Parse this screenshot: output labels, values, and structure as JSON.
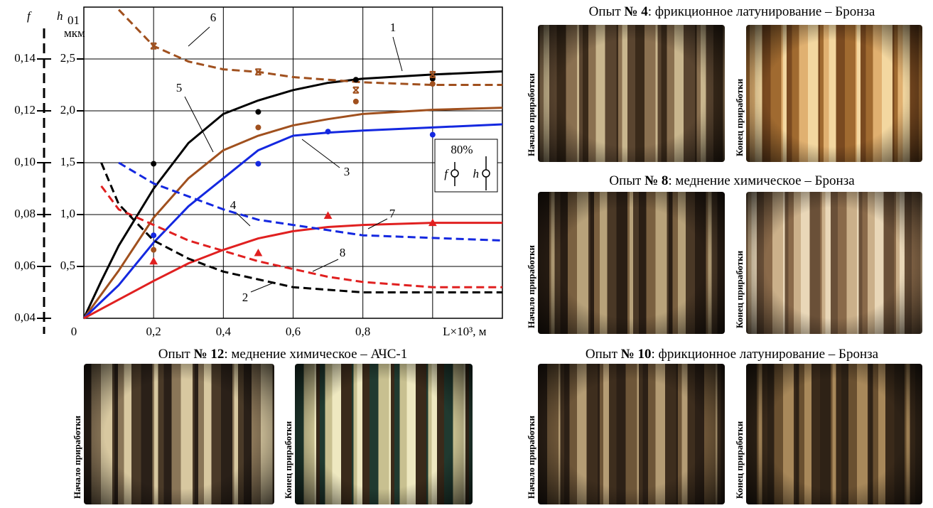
{
  "chart_data": {
    "type": "line",
    "axis_titles": {
      "f": "f",
      "h": "h",
      "h_sub": "01",
      "h_unit": "мкм"
    },
    "xlim": [
      0,
      1.2
    ],
    "ylim": [
      0,
      3.0
    ],
    "y2lim": [
      0.04,
      0.16
    ],
    "grid": true,
    "xticks": [
      0,
      {
        "value": 0.2,
        "label": "0,2"
      },
      {
        "value": 0.4,
        "label": "0,4"
      },
      {
        "value": 0.6,
        "label": "0,6"
      },
      {
        "value": 0.8,
        "label": "0,8"
      },
      {
        "value": 1.0,
        "label": "L×10³, м"
      }
    ],
    "yticks": [
      {
        "value": 0.5,
        "label": "0,5"
      },
      {
        "value": 1.0,
        "label": "1,0"
      },
      {
        "value": 1.5,
        "label": "1,5"
      },
      {
        "value": 2.0,
        "label": "2,0"
      },
      {
        "value": 2.5,
        "label": "2,5"
      }
    ],
    "y2ticks": [
      {
        "value": 0.04,
        "label": "0,04"
      },
      {
        "value": 0.06,
        "label": "0,06"
      },
      {
        "value": 0.08,
        "label": "0,08"
      },
      {
        "value": 0.1,
        "label": "0,10"
      },
      {
        "value": 0.12,
        "label": "0,12"
      },
      {
        "value": 0.14,
        "label": "0,14"
      }
    ],
    "x": [
      0,
      0.05,
      0.1,
      0.2,
      0.3,
      0.4,
      0.5,
      0.6,
      0.7,
      0.8,
      1.0,
      1.2
    ],
    "series": [
      {
        "label": "1",
        "color": "#000000",
        "style": "solid",
        "values": [
          0,
          0.36,
          0.7,
          1.25,
          1.69,
          1.97,
          2.1,
          2.2,
          2.27,
          2.31,
          2.35,
          2.38
        ]
      },
      {
        "label": "5",
        "color": "#a0501e",
        "style": "solid",
        "values": [
          0,
          0.23,
          0.46,
          0.97,
          1.35,
          1.62,
          1.76,
          1.86,
          1.92,
          1.97,
          2.01,
          2.03
        ]
      },
      {
        "label": "3",
        "color": "#1428e0",
        "style": "solid",
        "values": [
          0,
          0.16,
          0.32,
          0.73,
          1.08,
          1.35,
          1.62,
          1.76,
          1.79,
          1.81,
          1.84,
          1.87
        ]
      },
      {
        "label": "7",
        "color": "#e02020",
        "style": "solid",
        "values": [
          0,
          0.09,
          0.18,
          0.36,
          0.53,
          0.66,
          0.77,
          0.84,
          0.88,
          0.9,
          0.92,
          0.92
        ]
      },
      {
        "label": "6",
        "color": "#a0501e",
        "style": "dashed",
        "axis": "y2",
        "values": [
          null,
          null,
          0.159,
          0.145,
          0.139,
          0.136,
          0.135,
          0.133,
          0.132,
          0.131,
          0.13,
          0.13
        ]
      },
      {
        "label": "4",
        "color": "#1428e0",
        "style": "dashed",
        "axis": "y2",
        "values": [
          null,
          null,
          0.1,
          0.092,
          0.087,
          0.082,
          0.078,
          0.076,
          0.074,
          0.072,
          0.071,
          0.07
        ]
      },
      {
        "label": "8",
        "color": "#e02020",
        "style": "dashed",
        "axis": "y2",
        "values": [
          null,
          0.091,
          0.082,
          0.076,
          0.07,
          0.066,
          0.062,
          0.059,
          0.056,
          0.054,
          0.052,
          0.052
        ]
      },
      {
        "label": "2",
        "color": "#000000",
        "style": "dashed",
        "axis": "y2",
        "values": [
          null,
          0.1,
          0.084,
          0.07,
          0.063,
          0.058,
          0.055,
          0.052,
          0.051,
          0.05,
          0.05,
          0.05
        ]
      }
    ],
    "points": [
      {
        "color": "#000000",
        "marker": "circle",
        "x": [
          0.2,
          0.5,
          0.78,
          1.0
        ],
        "y": [
          1.49,
          1.99,
          2.3,
          2.31
        ]
      },
      {
        "color": "#a0501e",
        "marker": "circle",
        "x": [
          0.2,
          0.5,
          0.78,
          1.0
        ],
        "y": [
          0.66,
          1.84,
          2.09,
          2.26
        ]
      },
      {
        "color": "#1428e0",
        "marker": "circle",
        "x": [
          0.2,
          0.5,
          0.7,
          1.0
        ],
        "y": [
          0.8,
          1.49,
          1.8,
          1.77
        ]
      },
      {
        "color": "#e02020",
        "marker": "triangle",
        "x": [
          0.2,
          0.5,
          0.7,
          1.0
        ],
        "y": [
          0.55,
          0.63,
          0.99,
          0.92
        ]
      },
      {
        "color": "#a0501e",
        "marker": "cross",
        "axis": "y2",
        "x": [
          0.2,
          0.5,
          0.78,
          1.0
        ],
        "y": [
          0.145,
          0.135,
          0.128,
          0.134
        ]
      }
    ],
    "legend_box": {
      "title": "80%",
      "items": [
        "f",
        "h"
      ]
    }
  },
  "panels": [
    {
      "caption": {
        "prefix": "Опыт ",
        "number": "№ 4",
        "rest": ": фрикционное латунирование – Бронза"
      },
      "images": [
        "Начало приработки",
        "Конец приработки"
      ]
    },
    {
      "caption": {
        "prefix": "Опыт ",
        "number": "№ 8",
        "rest": ": меднение химическое – Бронза"
      },
      "images": [
        "Начало приработки",
        "Конец приработки"
      ]
    },
    {
      "caption": {
        "prefix": "Опыт ",
        "number": "№ 10",
        "rest": ": фрикционное латунирование – Бронза"
      },
      "images": [
        "Начало приработки",
        "Конец приработки"
      ]
    },
    {
      "caption": {
        "prefix": "Опыт ",
        "number": "№ 12",
        "rest": ": меднение химическое – АЧС-1"
      },
      "images": [
        "Начало приработки",
        "Конец приработки"
      ]
    }
  ]
}
